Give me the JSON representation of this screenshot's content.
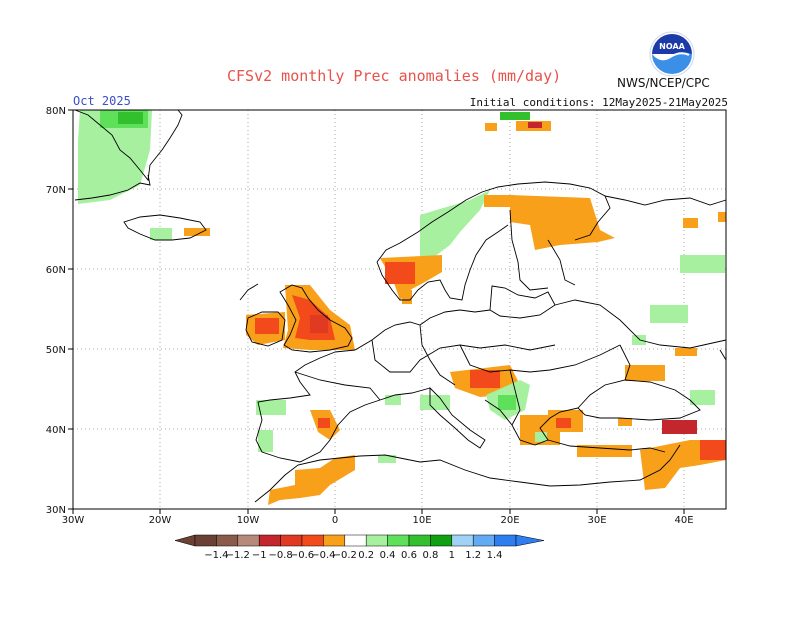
{
  "header": {
    "title": "CFSv2 monthly Prec anomalies (mm/day)",
    "valid_month": "Oct 2025",
    "initial_conditions": "Initial conditions: 12May2025-21May2025",
    "agency": "NWS/NCEP/CPC",
    "logo_text": "NOAA"
  },
  "map": {
    "lon_range": [
      -30,
      45
    ],
    "lat_range": [
      30,
      80
    ],
    "lon_labels": [
      "30W",
      "20W",
      "10W",
      "0",
      "10E",
      "20E",
      "30E",
      "40E"
    ],
    "lat_labels": [
      "30N",
      "40N",
      "50N",
      "60N",
      "70N",
      "80N"
    ],
    "grid": "dotted",
    "colors": {
      "land_border": "#000000",
      "grid": "#aaaaaa"
    }
  },
  "colorbar": {
    "colors": [
      "#6b4035",
      "#8a5a4a",
      "#b58a7a",
      "#c4262e",
      "#e03a22",
      "#f24a1a",
      "#f9a01b",
      "#ffffff",
      "#a6f0a0",
      "#5ee05a",
      "#33c02e",
      "#11a011",
      "#9fd2f5",
      "#62aaf2",
      "#2f7ef0"
    ],
    "labels": [
      "−1.4",
      "−1.2",
      "−1",
      "−0.8",
      "−0.6",
      "−0.4",
      "−0.2",
      "0.2",
      "0.4",
      "0.6",
      "0.8",
      "1",
      "1.2",
      "1.4"
    ]
  }
}
